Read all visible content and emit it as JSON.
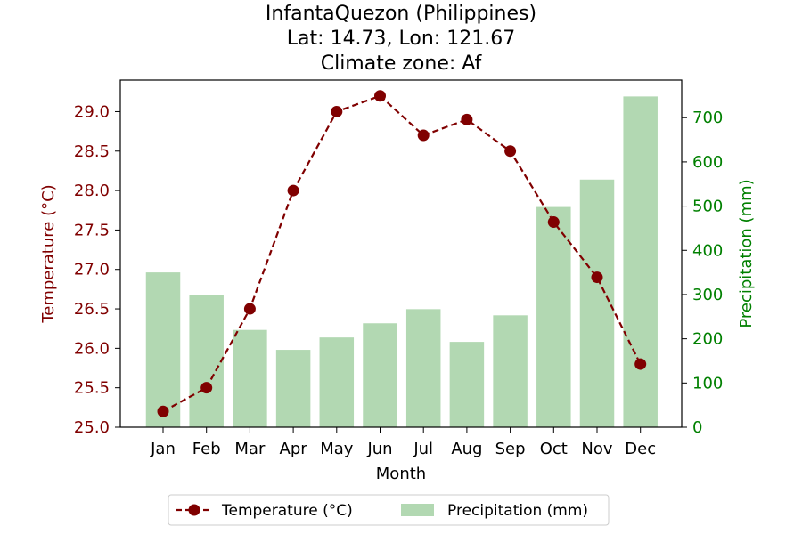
{
  "chart_data": {
    "type": "bar",
    "title_lines": [
      "InfantaQuezon (Philippines)",
      "Lat: 14.73, Lon: 121.67",
      "Climate zone: Af"
    ],
    "xlabel": "Month",
    "categories": [
      "Jan",
      "Feb",
      "Mar",
      "Apr",
      "May",
      "Jun",
      "Jul",
      "Aug",
      "Sep",
      "Oct",
      "Nov",
      "Dec"
    ],
    "series": [
      {
        "name": "Temperature (°C)",
        "kind": "line",
        "axis": "left",
        "color": "#800000",
        "values": [
          25.2,
          25.5,
          26.5,
          28.0,
          29.0,
          29.2,
          28.7,
          28.9,
          28.5,
          27.6,
          26.9,
          25.8
        ]
      },
      {
        "name": "Precipitation (mm)",
        "kind": "bar",
        "axis": "right",
        "color": "#b2d8b2",
        "values": [
          350,
          298,
          220,
          175,
          203,
          235,
          267,
          193,
          253,
          498,
          560,
          748
        ]
      }
    ],
    "y_left": {
      "label": "Temperature (°C)",
      "color": "#800000",
      "range": [
        25.0,
        29.4
      ],
      "ticks": [
        "25.0",
        "25.5",
        "26.0",
        "26.5",
        "27.0",
        "27.5",
        "28.0",
        "28.5",
        "29.0"
      ]
    },
    "y_right": {
      "label": "Precipitation (mm)",
      "color": "#008000",
      "range": [
        0,
        785
      ],
      "ticks": [
        "0",
        "100",
        "200",
        "300",
        "400",
        "500",
        "600",
        "700"
      ]
    },
    "grid": false,
    "legend_position": "bottom-center"
  }
}
